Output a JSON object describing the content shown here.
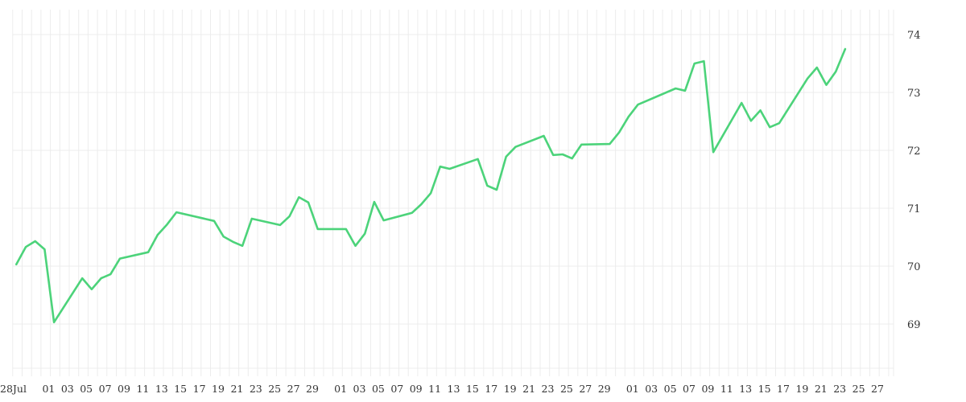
{
  "chart_data": {
    "type": "line",
    "title": "",
    "xlabel": "",
    "ylabel": "",
    "ylim": [
      68.2,
      74.4
    ],
    "grid": true,
    "y_axis_position": "right",
    "y_ticks": [
      69,
      70,
      71,
      72,
      73,
      74
    ],
    "x_ticks": [
      {
        "date": "06-28",
        "label": "28Jul"
      },
      {
        "date": "07-01",
        "label": "01"
      },
      {
        "date": "07-03",
        "label": "03"
      },
      {
        "date": "07-05",
        "label": "05"
      },
      {
        "date": "07-07",
        "label": "07"
      },
      {
        "date": "07-09",
        "label": "09"
      },
      {
        "date": "07-11",
        "label": "11"
      },
      {
        "date": "07-13",
        "label": "13"
      },
      {
        "date": "07-15",
        "label": "15"
      },
      {
        "date": "07-17",
        "label": "17"
      },
      {
        "date": "07-19",
        "label": "19"
      },
      {
        "date": "07-21",
        "label": "21"
      },
      {
        "date": "07-23",
        "label": "23"
      },
      {
        "date": "07-25",
        "label": "25"
      },
      {
        "date": "07-27",
        "label": "27"
      },
      {
        "date": "07-29",
        "label": "29"
      },
      {
        "date": "08-01",
        "label": "01"
      },
      {
        "date": "08-03",
        "label": "03"
      },
      {
        "date": "08-05",
        "label": "05"
      },
      {
        "date": "08-07",
        "label": "07"
      },
      {
        "date": "08-09",
        "label": "09"
      },
      {
        "date": "08-11",
        "label": "11"
      },
      {
        "date": "08-13",
        "label": "13"
      },
      {
        "date": "08-15",
        "label": "15"
      },
      {
        "date": "08-17",
        "label": "17"
      },
      {
        "date": "08-19",
        "label": "19"
      },
      {
        "date": "08-21",
        "label": "21"
      },
      {
        "date": "08-23",
        "label": "23"
      },
      {
        "date": "08-25",
        "label": "25"
      },
      {
        "date": "08-27",
        "label": "27"
      },
      {
        "date": "08-29",
        "label": "29"
      },
      {
        "date": "09-01",
        "label": "01"
      },
      {
        "date": "09-03",
        "label": "03"
      },
      {
        "date": "09-05",
        "label": "05"
      },
      {
        "date": "09-07",
        "label": "07"
      },
      {
        "date": "09-09",
        "label": "09"
      },
      {
        "date": "09-11",
        "label": "11"
      },
      {
        "date": "09-13",
        "label": "13"
      },
      {
        "date": "09-15",
        "label": "15"
      },
      {
        "date": "09-17",
        "label": "17"
      },
      {
        "date": "09-19",
        "label": "19"
      },
      {
        "date": "09-21",
        "label": "21"
      },
      {
        "date": "09-23",
        "label": "23"
      },
      {
        "date": "09-25",
        "label": "25"
      },
      {
        "date": "09-27",
        "label": "27"
      }
    ],
    "series": [
      {
        "color": "#4cd37a",
        "points": [
          [
            "06-28",
            70.03
          ],
          [
            "06-29",
            70.33
          ],
          [
            "06-30",
            70.43
          ],
          [
            "07-01",
            70.29
          ],
          [
            "07-02",
            69.03
          ],
          [
            "07-05",
            69.79
          ],
          [
            "07-06",
            69.6
          ],
          [
            "07-07",
            69.79
          ],
          [
            "07-08",
            69.86
          ],
          [
            "07-09",
            70.13
          ],
          [
            "07-12",
            70.24
          ],
          [
            "07-13",
            70.54
          ],
          [
            "07-14",
            70.72
          ],
          [
            "07-15",
            70.93
          ],
          [
            "07-19",
            70.78
          ],
          [
            "07-20",
            70.51
          ],
          [
            "07-21",
            70.42
          ],
          [
            "07-22",
            70.35
          ],
          [
            "07-23",
            70.82
          ],
          [
            "07-26",
            70.71
          ],
          [
            "07-27",
            70.86
          ],
          [
            "07-28",
            71.19
          ],
          [
            "07-29",
            71.1
          ],
          [
            "07-30",
            70.64
          ],
          [
            "08-02",
            70.64
          ],
          [
            "08-03",
            70.35
          ],
          [
            "08-04",
            70.56
          ],
          [
            "08-05",
            71.11
          ],
          [
            "08-06",
            70.79
          ],
          [
            "08-09",
            70.92
          ],
          [
            "08-10",
            71.07
          ],
          [
            "08-11",
            71.26
          ],
          [
            "08-12",
            71.72
          ],
          [
            "08-13",
            71.68
          ],
          [
            "08-16",
            71.85
          ],
          [
            "08-17",
            71.39
          ],
          [
            "08-18",
            71.32
          ],
          [
            "08-19",
            71.89
          ],
          [
            "08-20",
            72.06
          ],
          [
            "08-23",
            72.25
          ],
          [
            "08-24",
            71.92
          ],
          [
            "08-25",
            71.93
          ],
          [
            "08-26",
            71.86
          ],
          [
            "08-27",
            72.1
          ],
          [
            "08-30",
            72.11
          ],
          [
            "08-31",
            72.31
          ],
          [
            "09-01",
            72.58
          ],
          [
            "09-02",
            72.79
          ],
          [
            "09-06",
            73.07
          ],
          [
            "09-07",
            73.03
          ],
          [
            "09-08",
            73.5
          ],
          [
            "09-09",
            73.54
          ],
          [
            "09-10",
            71.97
          ],
          [
            "09-13",
            72.82
          ],
          [
            "09-14",
            72.51
          ],
          [
            "09-15",
            72.69
          ],
          [
            "09-16",
            72.4
          ],
          [
            "09-17",
            72.47
          ],
          [
            "09-20",
            73.24
          ],
          [
            "09-21",
            73.43
          ],
          [
            "09-22",
            73.13
          ],
          [
            "09-23",
            73.36
          ],
          [
            "09-24",
            73.75
          ]
        ]
      }
    ]
  }
}
